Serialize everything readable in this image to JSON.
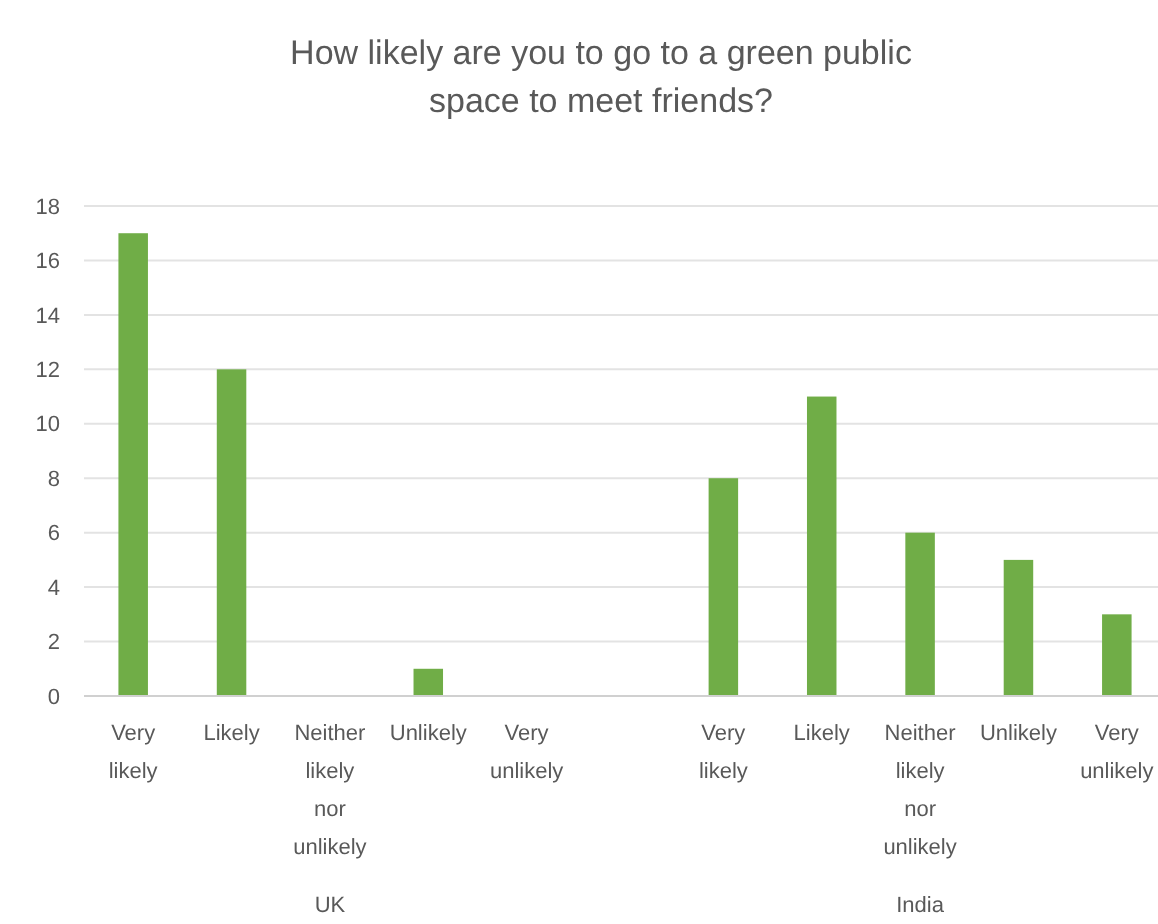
{
  "chart_data": {
    "type": "bar",
    "title": "How likely are you to go to a green public space to meet friends?",
    "categories": [
      "Very likely",
      "Likely",
      "Neither likely nor unlikely",
      "Unlikely",
      "Very unlikely",
      null,
      "Very likely",
      "Likely",
      "Neither likely nor unlikely",
      "Unlikely",
      "Very unlikely"
    ],
    "values": [
      17,
      12,
      0,
      1,
      0,
      null,
      8,
      11,
      6,
      5,
      3
    ],
    "color": "#70ad47",
    "ylim": [
      0,
      18
    ],
    "yticks": [
      0,
      2,
      4,
      6,
      8,
      10,
      12,
      14,
      16,
      18
    ],
    "grid": "y",
    "annotations": [
      "UK",
      "India"
    ]
  }
}
